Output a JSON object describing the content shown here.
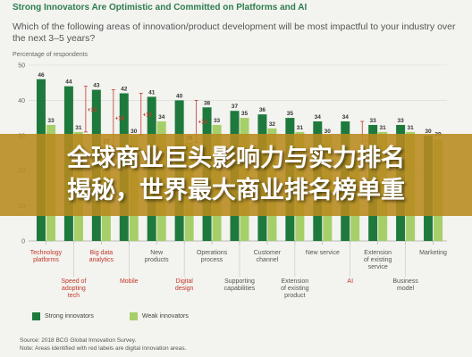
{
  "header": {
    "title": "Strong Innovators Are Optimistic and Committed on Platforms and AI",
    "question": "Which of the following areas of innovation/product development will be most impactful to your industry over the next 3–5 years?"
  },
  "banner": {
    "line1": "全球商业巨头影响力与实力排名",
    "line2": "揭秘，世界最大商业排名榜单重"
  },
  "footer": {
    "source": "Source: 2018 BCG Global Innovation Survey.",
    "note": "Note: Areas identified with red labels are digital innovation areas."
  },
  "colors": {
    "strong": "#1e7a3c",
    "weak": "#a6cf6a",
    "digital_label": "#c0392b",
    "nondigital_label": "#555555",
    "gap": "#c0392b"
  },
  "chart_data": {
    "type": "bar",
    "ylabel": "Percentage of respondents",
    "ylim": [
      0,
      50
    ],
    "yticks": [
      0,
      10,
      20,
      30,
      40,
      50
    ],
    "categories": [
      "Technology platforms",
      "Speed of adopting tech",
      "Big data analytics",
      "Mobile",
      "New products",
      "Digital design",
      "Operations process",
      "Supporting capabilities",
      "Customer channel",
      "Extension of existing product",
      "New service",
      "AI",
      "Extension of existing service",
      "Business model",
      "Marketing"
    ],
    "digital": [
      true,
      true,
      true,
      true,
      false,
      true,
      false,
      false,
      false,
      false,
      false,
      true,
      false,
      false,
      false
    ],
    "label_row": [
      1,
      2,
      1,
      2,
      1,
      2,
      1,
      2,
      1,
      2,
      1,
      2,
      1,
      2,
      1
    ],
    "series": [
      {
        "name": "Strong innovators",
        "values": [
          46,
          44,
          43,
          42,
          41,
          40,
          38,
          37,
          36,
          35,
          34,
          34,
          33,
          33,
          30
        ]
      },
      {
        "name": "Weak innovators",
        "values": [
          33,
          31,
          27,
          30,
          34,
          28,
          33,
          35,
          32,
          31,
          30,
          23,
          31,
          31,
          29
        ]
      }
    ],
    "gaps": [
      {
        "index": 1,
        "value": 13
      },
      {
        "index": 2,
        "value": 16
      },
      {
        "index": 3,
        "value": 12
      },
      {
        "index": 5,
        "value": 12
      },
      {
        "index": 11,
        "value": 11
      }
    ]
  }
}
